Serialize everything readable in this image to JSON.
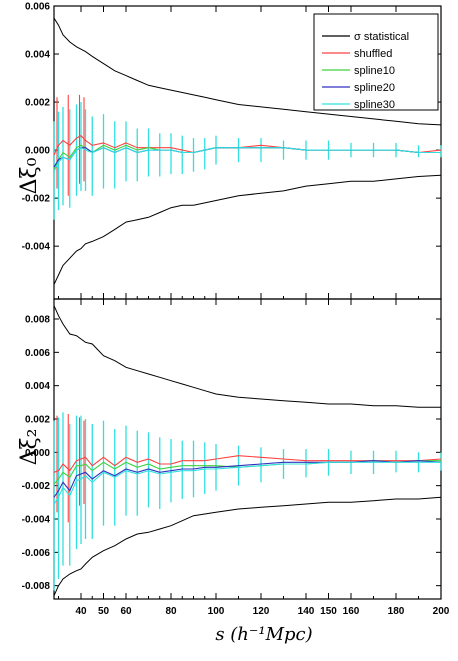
{
  "chart_data": [
    {
      "type": "line",
      "ylabel": "Δξ₀",
      "ylim": [
        -0.0062,
        0.006
      ],
      "xlim": [
        28,
        200
      ],
      "yticks": [
        "0.006",
        "0.004",
        "0.002",
        "0.000",
        "-0.002",
        "-0.004"
      ],
      "ytick_values": [
        0.006,
        0.004,
        0.002,
        0.0,
        -0.002,
        -0.004
      ],
      "x": [
        28,
        30,
        32,
        35,
        38,
        40,
        42,
        45,
        50,
        55,
        60,
        65,
        70,
        75,
        80,
        85,
        90,
        95,
        100,
        110,
        120,
        130,
        140,
        150,
        160,
        170,
        180,
        190,
        200
      ],
      "legend": {
        "position": "top-right",
        "entries": [
          "σ statistical",
          "shuffled",
          "spline10",
          "spline20",
          "spline30"
        ]
      },
      "series": [
        {
          "name": "σ statistical",
          "color": "#000000",
          "values": [
            0.0055,
            0.0052,
            0.0048,
            0.0045,
            0.0043,
            0.0042,
            0.0041,
            0.0039,
            0.0036,
            0.0033,
            0.0031,
            0.0029,
            0.0027,
            0.0026,
            0.0025,
            0.0024,
            0.0023,
            0.0022,
            0.0021,
            0.0019,
            0.0018,
            0.0017,
            0.0016,
            0.0015,
            0.0014,
            0.0013,
            0.0012,
            0.0011,
            0.00105
          ]
        },
        {
          "name": "σ statistical (lower)",
          "color": "#000000",
          "values": [
            -0.0056,
            -0.0052,
            -0.0048,
            -0.0045,
            -0.0042,
            -0.0041,
            -0.0039,
            -0.0038,
            -0.0036,
            -0.0033,
            -0.003,
            -0.0029,
            -0.0028,
            -0.0026,
            -0.0024,
            -0.0023,
            -0.0023,
            -0.0022,
            -0.0021,
            -0.0019,
            -0.0018,
            -0.0017,
            -0.0015,
            -0.0014,
            -0.0013,
            -0.0013,
            -0.0012,
            -0.0011,
            -0.00105
          ]
        },
        {
          "name": "shuffled",
          "color": "#ff4040",
          "values": [
            -0.0002,
            0.0002,
            0.0004,
            0.0002,
            0.0005,
            0.0006,
            0.0004,
            0.0002,
            0.0003,
            0.0001,
            0.0003,
            0.0001,
            0.0001,
            0.0001,
            0.0001,
            0.0,
            -0.0001,
            0.0,
            0.0001,
            0.0001,
            0.0002,
            0.0001,
            0.0,
            0.0,
            0.0,
            0.0,
            0.0,
            -0.0001,
            0.0
          ]
        },
        {
          "name": "spline10",
          "color": "#40d040",
          "values": [
            -0.0008,
            -0.0004,
            -0.0001,
            -0.0003,
            0.0001,
            0.0002,
            0.0001,
            -0.0001,
            0.0002,
            0.0,
            0.0002,
            0.0,
            0.0001,
            0.0,
            0.0,
            -0.0001,
            -0.0001,
            0.0,
            0.0001,
            0.0001,
            0.0001,
            0.0001,
            0.0,
            0.0,
            0.0,
            0.0,
            0.0,
            -0.0001,
            -0.0001
          ]
        },
        {
          "name": "spline20",
          "color": "#3030c0",
          "values": [
            -0.0007,
            -0.0004,
            -0.0003,
            -0.0004,
            0.0,
            0.0001,
            0.0001,
            -0.0001,
            0.0001,
            -0.0001,
            0.0001,
            -0.0001,
            0.0,
            0.0,
            0.0,
            -0.0001,
            -0.0001,
            0.0,
            0.0001,
            0.0001,
            0.0001,
            0.0001,
            0.0,
            0.0,
            0.0,
            0.0,
            0.0,
            -0.0001,
            -0.0001
          ]
        },
        {
          "name": "spline30",
          "color": "#30e0e0",
          "values": [
            -0.0009,
            -0.0005,
            -0.0003,
            -0.0004,
            0.0,
            0.0001,
            0.0,
            -0.0001,
            0.0001,
            -0.0001,
            0.0001,
            -0.0001,
            0.0,
            0.0,
            0.0,
            -0.0001,
            -0.0001,
            0.0,
            0.0001,
            0.0001,
            0.0001,
            0.0001,
            0.0,
            0.0,
            0.0,
            0.0,
            0.0,
            -0.0001,
            -0.0001
          ]
        }
      ],
      "errorbars": {
        "color": "#30e0e0",
        "x": [
          28,
          30,
          32,
          35,
          38,
          40,
          42,
          45,
          50,
          55,
          60,
          65,
          70,
          75,
          80,
          85,
          90,
          95,
          100,
          110,
          120,
          130,
          140,
          150,
          160,
          170,
          180,
          190,
          200
        ],
        "low": [
          -0.0029,
          -0.0025,
          -0.0023,
          -0.0024,
          -0.0019,
          -0.0017,
          -0.0017,
          -0.0019,
          -0.0016,
          -0.0016,
          -0.0013,
          -0.0013,
          -0.0011,
          -0.0011,
          -0.001,
          -0.001,
          -0.0009,
          -0.0008,
          -0.0006,
          -0.0005,
          -0.0005,
          -0.0004,
          -0.0004,
          -0.0004,
          -0.0003,
          -0.0003,
          -0.0003,
          -0.0003,
          -0.0003
        ],
        "high": [
          0.0012,
          0.0016,
          0.0018,
          0.0017,
          0.0019,
          0.002,
          0.0017,
          0.0014,
          0.0015,
          0.0012,
          0.0012,
          0.0009,
          0.0009,
          0.0007,
          0.0007,
          0.0006,
          0.0005,
          0.0005,
          0.0006,
          0.0005,
          0.0005,
          0.0004,
          0.0004,
          0.0004,
          0.0003,
          0.0003,
          0.0003,
          0.0002,
          0.0002
        ]
      },
      "redbars": {
        "color": "#ff4040",
        "x": [
          30,
          35,
          40,
          42
        ],
        "low": [
          -0.0016,
          -0.0019,
          -0.0014,
          -0.0013
        ],
        "high": [
          0.0022,
          0.0023,
          0.0023,
          0.0022
        ]
      }
    },
    {
      "type": "line",
      "ylabel": "Δξ₂",
      "ylim": [
        -0.0088,
        0.0092
      ],
      "xlim": [
        28,
        200
      ],
      "yticks": [
        "0.008",
        "0.006",
        "0.004",
        "0.002",
        "0.000",
        "-0.002",
        "-0.004",
        "-0.006",
        "-0.008"
      ],
      "ytick_values": [
        0.008,
        0.006,
        0.004,
        0.002,
        0.0,
        -0.002,
        -0.004,
        -0.006,
        -0.008
      ],
      "xticks": [
        "40",
        "50",
        "60",
        "80",
        "100",
        "120",
        "140",
        "150",
        "160",
        "180",
        "200"
      ],
      "xtick_values": [
        40,
        50,
        60,
        80,
        100,
        120,
        140,
        150,
        160,
        180,
        200
      ],
      "xminor_ticks": [
        30,
        45,
        55,
        65,
        70,
        75,
        85,
        90,
        95,
        110,
        130,
        170,
        190
      ],
      "xlabel": "s (h⁻¹Mpc)",
      "x": [
        28,
        30,
        32,
        35,
        38,
        40,
        42,
        45,
        50,
        55,
        60,
        65,
        70,
        75,
        80,
        85,
        90,
        95,
        100,
        110,
        120,
        130,
        140,
        150,
        160,
        170,
        180,
        190,
        200
      ],
      "series": [
        {
          "name": "σ statistical",
          "color": "#000000",
          "values": [
            0.0088,
            0.0082,
            0.0077,
            0.0071,
            0.007,
            0.0068,
            0.0066,
            0.0065,
            0.0058,
            0.0055,
            0.0051,
            0.0049,
            0.0047,
            0.0045,
            0.0043,
            0.0041,
            0.0039,
            0.0037,
            0.0035,
            0.0033,
            0.0032,
            0.0031,
            0.003,
            0.0029,
            0.0029,
            0.0028,
            0.0028,
            0.0027,
            0.0027
          ]
        },
        {
          "name": "σ statistical (lower)",
          "color": "#000000",
          "values": [
            -0.0086,
            -0.008,
            -0.0076,
            -0.0073,
            -0.0071,
            -0.007,
            -0.0067,
            -0.0063,
            -0.0059,
            -0.0056,
            -0.0052,
            -0.0049,
            -0.0048,
            -0.0046,
            -0.0044,
            -0.0041,
            -0.0038,
            -0.0037,
            -0.0036,
            -0.0034,
            -0.0033,
            -0.0032,
            -0.0031,
            -0.003,
            -0.003,
            -0.0029,
            -0.0028,
            -0.0028,
            -0.0027
          ]
        },
        {
          "name": "shuffled",
          "color": "#ff4040",
          "values": [
            -0.0012,
            -0.0011,
            -0.0007,
            -0.0011,
            -0.0005,
            -0.0004,
            -0.0003,
            -0.0008,
            -0.0003,
            -0.0008,
            -0.0003,
            -0.0006,
            -0.0004,
            -0.0007,
            -0.0007,
            -0.0005,
            -0.0005,
            -0.0005,
            -0.0004,
            -0.0002,
            -0.0003,
            -0.0004,
            -0.0005,
            -0.0005,
            -0.0005,
            -0.0005,
            -0.0005,
            -0.0005,
            -0.0004
          ]
        },
        {
          "name": "spline10",
          "color": "#40d040",
          "values": [
            -0.0019,
            -0.0016,
            -0.0012,
            -0.0015,
            -0.0008,
            -0.0008,
            -0.0007,
            -0.0011,
            -0.0006,
            -0.001,
            -0.0006,
            -0.0009,
            -0.0007,
            -0.001,
            -0.0009,
            -0.0008,
            -0.0008,
            -0.0008,
            -0.0008,
            -0.0009,
            -0.0008,
            -0.0007,
            -0.0007,
            -0.0006,
            -0.0006,
            -0.0005,
            -0.0006,
            -0.0005,
            -0.0005
          ]
        },
        {
          "name": "spline20",
          "color": "#3030c0",
          "values": [
            -0.0027,
            -0.0023,
            -0.0018,
            -0.0023,
            -0.0014,
            -0.0013,
            -0.0012,
            -0.0016,
            -0.0011,
            -0.0014,
            -0.001,
            -0.0012,
            -0.001,
            -0.0012,
            -0.0011,
            -0.001,
            -0.001,
            -0.0009,
            -0.0009,
            -0.0008,
            -0.0007,
            -0.0006,
            -0.0006,
            -0.0006,
            -0.0006,
            -0.0005,
            -0.0006,
            -0.0005,
            -0.0006
          ]
        },
        {
          "name": "spline30",
          "color": "#30e0e0",
          "values": [
            -0.0031,
            -0.0027,
            -0.0021,
            -0.0026,
            -0.0017,
            -0.0016,
            -0.0014,
            -0.0018,
            -0.0012,
            -0.0015,
            -0.0011,
            -0.0013,
            -0.0011,
            -0.0013,
            -0.0012,
            -0.0011,
            -0.0011,
            -0.001,
            -0.001,
            -0.0009,
            -0.0008,
            -0.0007,
            -0.0007,
            -0.0006,
            -0.0006,
            -0.0006,
            -0.0006,
            -0.0006,
            -0.0006
          ]
        }
      ],
      "errorbars": {
        "color": "#30e0e0",
        "x": [
          28,
          30,
          32,
          35,
          38,
          40,
          42,
          45,
          50,
          55,
          60,
          65,
          70,
          75,
          80,
          85,
          90,
          95,
          100,
          110,
          120,
          130,
          140,
          150,
          160,
          170,
          180,
          190,
          200
        ],
        "low": [
          -0.0083,
          -0.0076,
          -0.0068,
          -0.0068,
          -0.0058,
          -0.0055,
          -0.0052,
          -0.0052,
          -0.0044,
          -0.0044,
          -0.0038,
          -0.0038,
          -0.0033,
          -0.0034,
          -0.003,
          -0.0028,
          -0.0027,
          -0.0025,
          -0.0023,
          -0.002,
          -0.0018,
          -0.0016,
          -0.0015,
          -0.0014,
          -0.0013,
          -0.0013,
          -0.0012,
          -0.0012,
          -0.0011
        ],
        "high": [
          0.0019,
          0.0021,
          0.0024,
          0.0017,
          0.0022,
          0.0022,
          0.002,
          0.0017,
          0.0019,
          0.0014,
          0.0016,
          0.0013,
          0.0012,
          0.0009,
          0.0008,
          0.0007,
          0.0007,
          0.0006,
          0.0005,
          0.0004,
          0.0003,
          0.0002,
          0.0002,
          0.0002,
          0.0001,
          0.0001,
          0.0001,
          0.0,
          0.0
        ]
      },
      "redbars": {
        "color": "#ff4040",
        "x": [
          30,
          35,
          40,
          42
        ],
        "low": [
          -0.0036,
          -0.0042,
          -0.0032,
          -0.0031
        ],
        "high": [
          0.0022,
          0.0023,
          0.0021,
          0.0019
        ]
      }
    }
  ]
}
